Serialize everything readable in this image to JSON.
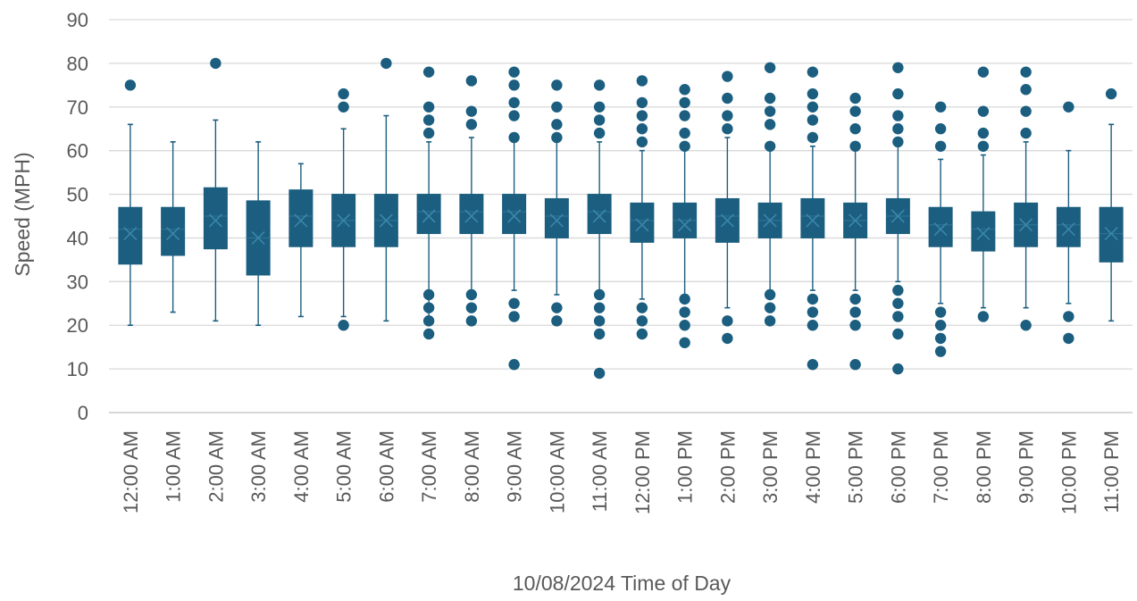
{
  "chart_data": {
    "type": "box",
    "xlabel": "10/08/2024 Time of Day",
    "ylabel": "Speed (MPH)",
    "ylim": [
      0,
      90
    ],
    "yticks": [
      0,
      10,
      20,
      30,
      40,
      50,
      60,
      70,
      80,
      90
    ],
    "grid": true,
    "color": "#1b5e7f",
    "categories": [
      "12:00 AM",
      "1:00 AM",
      "2:00 AM",
      "3:00 AM",
      "4:00 AM",
      "5:00 AM",
      "6:00 AM",
      "7:00 AM",
      "8:00 AM",
      "9:00 AM",
      "10:00 AM",
      "11:00 AM",
      "12:00 PM",
      "1:00 PM",
      "2:00 PM",
      "3:00 PM",
      "4:00 PM",
      "5:00 PM",
      "6:00 PM",
      "7:00 PM",
      "8:00 PM",
      "9:00 PM",
      "10:00 PM",
      "11:00 PM"
    ],
    "boxes": [
      {
        "min": 20,
        "q1": 34,
        "median": 42,
        "q3": 47,
        "max": 66,
        "mean": 41,
        "outliers": [
          75
        ]
      },
      {
        "min": 23,
        "q1": 36,
        "median": 42,
        "q3": 47,
        "max": 62,
        "mean": 41,
        "outliers": []
      },
      {
        "min": 21,
        "q1": 37.5,
        "median": 45,
        "q3": 51.5,
        "max": 67,
        "mean": 44,
        "outliers": [
          80
        ]
      },
      {
        "min": 20,
        "q1": 31.5,
        "median": 40,
        "q3": 48.5,
        "max": 62,
        "mean": 40,
        "outliers": []
      },
      {
        "min": 22,
        "q1": 38,
        "median": 45,
        "q3": 51,
        "max": 57,
        "mean": 44,
        "outliers": []
      },
      {
        "min": 22,
        "q1": 38,
        "median": 44,
        "q3": 50,
        "max": 65,
        "mean": 44,
        "outliers": [
          73,
          70,
          20
        ]
      },
      {
        "min": 21,
        "q1": 38,
        "median": 44,
        "q3": 50,
        "max": 68,
        "mean": 44,
        "outliers": [
          80
        ]
      },
      {
        "min": 22,
        "q1": 41,
        "median": 46,
        "q3": 50,
        "max": 62,
        "mean": 45,
        "outliers": [
          78,
          70,
          67,
          64,
          27,
          24,
          21,
          18
        ]
      },
      {
        "min": 28,
        "q1": 41,
        "median": 46,
        "q3": 50,
        "max": 63,
        "mean": 45,
        "outliers": [
          76,
          69,
          66,
          27,
          24,
          21
        ]
      },
      {
        "min": 28,
        "q1": 41,
        "median": 46,
        "q3": 50,
        "max": 62,
        "mean": 45,
        "outliers": [
          78,
          75,
          71,
          68,
          63,
          25,
          22,
          11
        ]
      },
      {
        "min": 27,
        "q1": 40,
        "median": 45,
        "q3": 49,
        "max": 62,
        "mean": 44,
        "outliers": [
          75,
          70,
          66,
          63,
          24,
          21
        ]
      },
      {
        "min": 28,
        "q1": 41,
        "median": 46,
        "q3": 50,
        "max": 62,
        "mean": 45,
        "outliers": [
          75,
          70,
          67,
          64,
          27,
          24,
          21,
          18,
          9
        ]
      },
      {
        "min": 26,
        "q1": 39,
        "median": 44,
        "q3": 48,
        "max": 60,
        "mean": 43,
        "outliers": [
          76,
          71,
          68,
          65,
          62,
          24,
          21,
          18
        ]
      },
      {
        "min": 27,
        "q1": 40,
        "median": 44,
        "q3": 48,
        "max": 60,
        "mean": 43,
        "outliers": [
          74,
          71,
          68,
          64,
          61,
          26,
          23,
          20,
          16
        ]
      },
      {
        "min": 24,
        "q1": 39,
        "median": 45,
        "q3": 49,
        "max": 63,
        "mean": 44,
        "outliers": [
          77,
          72,
          68,
          65,
          21,
          17
        ]
      },
      {
        "min": 28,
        "q1": 40,
        "median": 44,
        "q3": 48,
        "max": 60,
        "mean": 44,
        "outliers": [
          79,
          72,
          69,
          66,
          61,
          27,
          24,
          21
        ]
      },
      {
        "min": 28,
        "q1": 40,
        "median": 45,
        "q3": 49,
        "max": 61,
        "mean": 44,
        "outliers": [
          78,
          73,
          70,
          67,
          63,
          26,
          23,
          20,
          11
        ]
      },
      {
        "min": 28,
        "q1": 40,
        "median": 44,
        "q3": 48,
        "max": 60,
        "mean": 44,
        "outliers": [
          72,
          69,
          65,
          61,
          26,
          23,
          20,
          11
        ]
      },
      {
        "min": 30,
        "q1": 41,
        "median": 45,
        "q3": 49,
        "max": 61,
        "mean": 45,
        "outliers": [
          79,
          73,
          68,
          65,
          62,
          28,
          25,
          22,
          18,
          10
        ]
      },
      {
        "min": 25,
        "q1": 38,
        "median": 43,
        "q3": 47,
        "max": 58,
        "mean": 42,
        "outliers": [
          70,
          65,
          61,
          23,
          20,
          17,
          14
        ]
      },
      {
        "min": 24,
        "q1": 37,
        "median": 42,
        "q3": 46,
        "max": 59,
        "mean": 41,
        "outliers": [
          78,
          69,
          64,
          61,
          22
        ]
      },
      {
        "min": 24,
        "q1": 38,
        "median": 43,
        "q3": 48,
        "max": 62,
        "mean": 43,
        "outliers": [
          78,
          74,
          69,
          64,
          20
        ]
      },
      {
        "min": 25,
        "q1": 38,
        "median": 43,
        "q3": 47,
        "max": 60,
        "mean": 42,
        "outliers": [
          70,
          22,
          17
        ]
      },
      {
        "min": 21,
        "q1": 34.5,
        "median": 41,
        "q3": 47,
        "max": 66,
        "mean": 41,
        "outliers": [
          73
        ]
      }
    ]
  }
}
